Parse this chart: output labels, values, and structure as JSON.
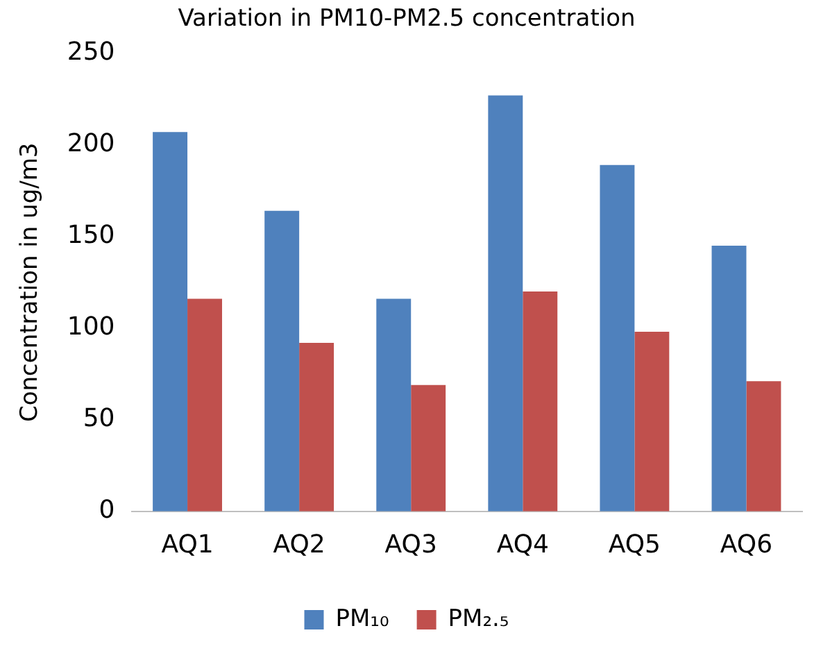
{
  "chart_data": {
    "type": "bar",
    "title": "Variation in PM10-PM2.5 concentration",
    "ylabel": "Concentration in ug/m3",
    "categories": [
      "AQ1",
      "AQ2",
      "AQ3",
      "AQ4",
      "AQ5",
      "AQ6"
    ],
    "series": [
      {
        "name": "PM₁₀",
        "color": "#4f81bd",
        "values": [
          207,
          164,
          116,
          227,
          189,
          145
        ]
      },
      {
        "name": "PM₂.₅",
        "color": "#c0504d",
        "values": [
          116,
          92,
          69,
          120,
          98,
          71
        ]
      }
    ],
    "ylim": [
      0,
      250
    ],
    "yticks": [
      0,
      50,
      100,
      150,
      200,
      250
    ],
    "grid": false,
    "legend": "bottom"
  }
}
